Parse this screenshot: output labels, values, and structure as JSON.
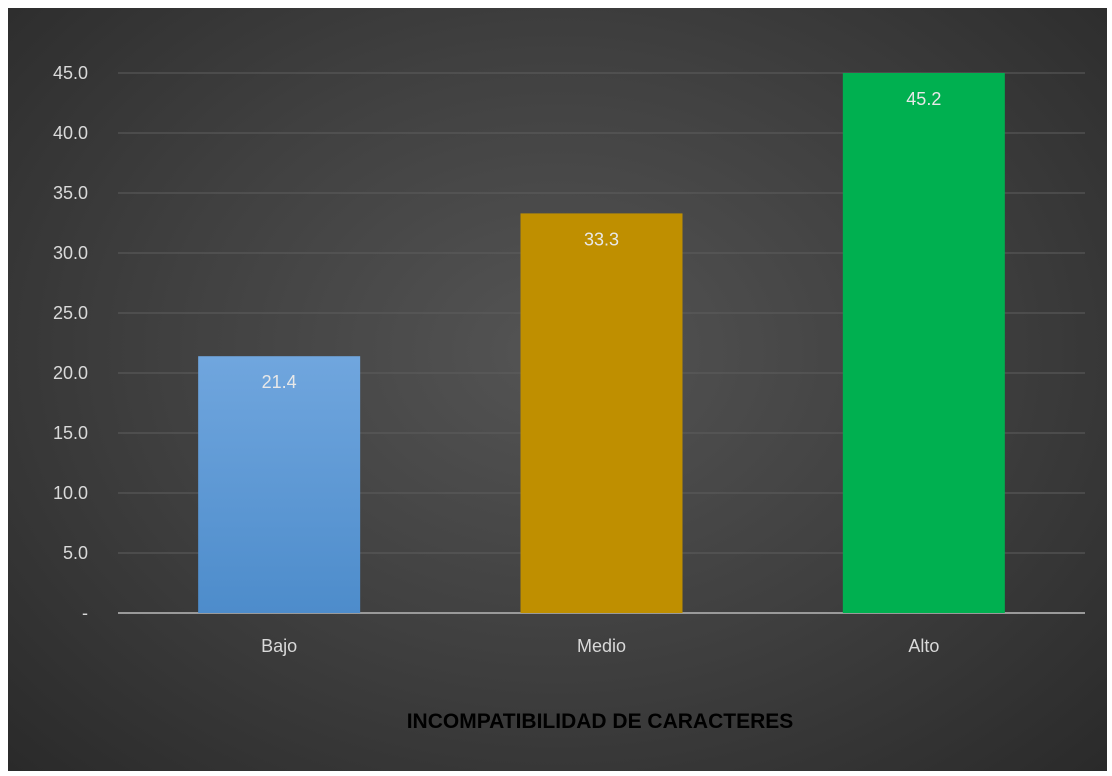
{
  "chart_data": {
    "type": "bar",
    "title": "",
    "xlabel": "INCOMPATIBILIDAD DE CARACTERES",
    "ylabel": "",
    "categories": [
      "Bajo",
      "Medio",
      "Alto"
    ],
    "values": [
      21.4,
      33.3,
      45.2
    ],
    "data_labels": [
      "21.4",
      "33.3",
      "45.2"
    ],
    "bar_colors": [
      "#5b9bd5",
      "#bf8f00",
      "#00b050"
    ],
    "ylim": [
      0,
      45
    ],
    "yticks": [
      0,
      5,
      10,
      15,
      20,
      25,
      30,
      35,
      40,
      45
    ],
    "ytick_labels": [
      "-",
      "5.0",
      "10.0",
      "15.0",
      "20.0",
      "25.0",
      "30.0",
      "35.0",
      "40.0",
      "45.0"
    ],
    "grid": true,
    "legend": "none"
  }
}
